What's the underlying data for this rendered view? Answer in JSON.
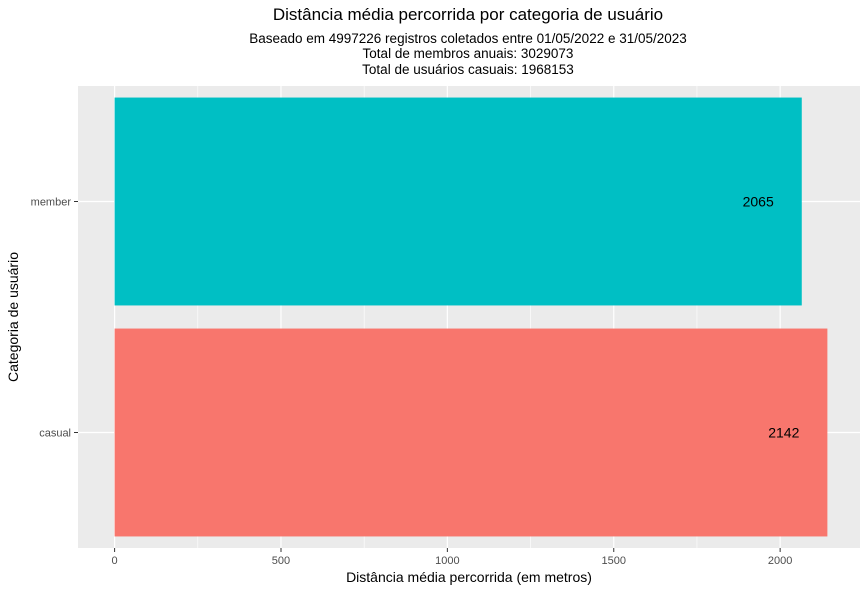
{
  "chart_data": {
    "type": "bar",
    "orientation": "horizontal",
    "title": "Distância média percorrida por categoria de usuário",
    "subtitle_lines": [
      "Baseado em 4997226 registros coletados entre 01/05/2022 e 31/05/2023",
      "Total de membros anuais:  3029073",
      "Total de usuários casuais:  1968153"
    ],
    "categories": [
      "casual",
      "member"
    ],
    "values": [
      2142,
      2065
    ],
    "data_labels": [
      "2142",
      "2065"
    ],
    "colors": [
      "#F8766D",
      "#00BFC4"
    ],
    "xlabel": "Distância média percorrida (em metros)",
    "ylabel": "Categoria de usuário",
    "xlim": [
      -110,
      2240
    ],
    "x_ticks": [
      0,
      500,
      1000,
      1500,
      2000
    ],
    "x_tick_labels": [
      "0",
      "500",
      "1000",
      "1500",
      "2000"
    ],
    "grid": true,
    "legend": "none",
    "panel_background": "#EBEBEB",
    "grid_color": "#FFFFFF"
  }
}
